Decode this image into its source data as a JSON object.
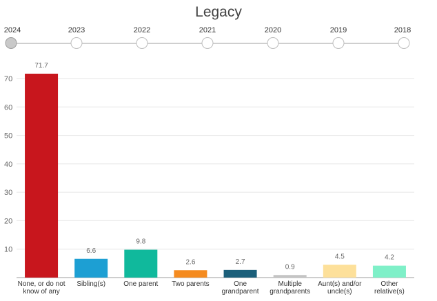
{
  "timeline": {
    "years": [
      "2024",
      "2023",
      "2022",
      "2021",
      "2020",
      "2019",
      "2018"
    ],
    "selected": "2024"
  },
  "chart_data": {
    "type": "bar",
    "title": "Legacy",
    "categories": [
      [
        "None, or do not",
        "know of any"
      ],
      [
        "Sibling(s)"
      ],
      [
        "One parent"
      ],
      [
        "Two parents"
      ],
      [
        "One",
        "grandparent"
      ],
      [
        "Multiple",
        "grandparents"
      ],
      [
        "Aunt(s) and/or",
        "uncle(s)"
      ],
      [
        "Other",
        "relative(s)"
      ]
    ],
    "values": [
      71.7,
      6.6,
      9.8,
      2.6,
      2.7,
      0.9,
      4.5,
      4.2
    ],
    "value_labels": [
      "71.7",
      "6.6",
      "9.8",
      "2.6",
      "2.7",
      "0.9",
      "4.5",
      "4.2"
    ],
    "colors": [
      "#c8161d",
      "#1d9fd3",
      "#10b99c",
      "#f58b1f",
      "#1b5f7a",
      "#c4c4c4",
      "#fde09a",
      "#7ff0c8"
    ],
    "ylim": [
      0,
      70
    ],
    "yticks": [
      "10",
      "20",
      "30",
      "40",
      "50",
      "60",
      "70"
    ],
    "xlabel": "",
    "ylabel": "",
    "grid": true
  }
}
